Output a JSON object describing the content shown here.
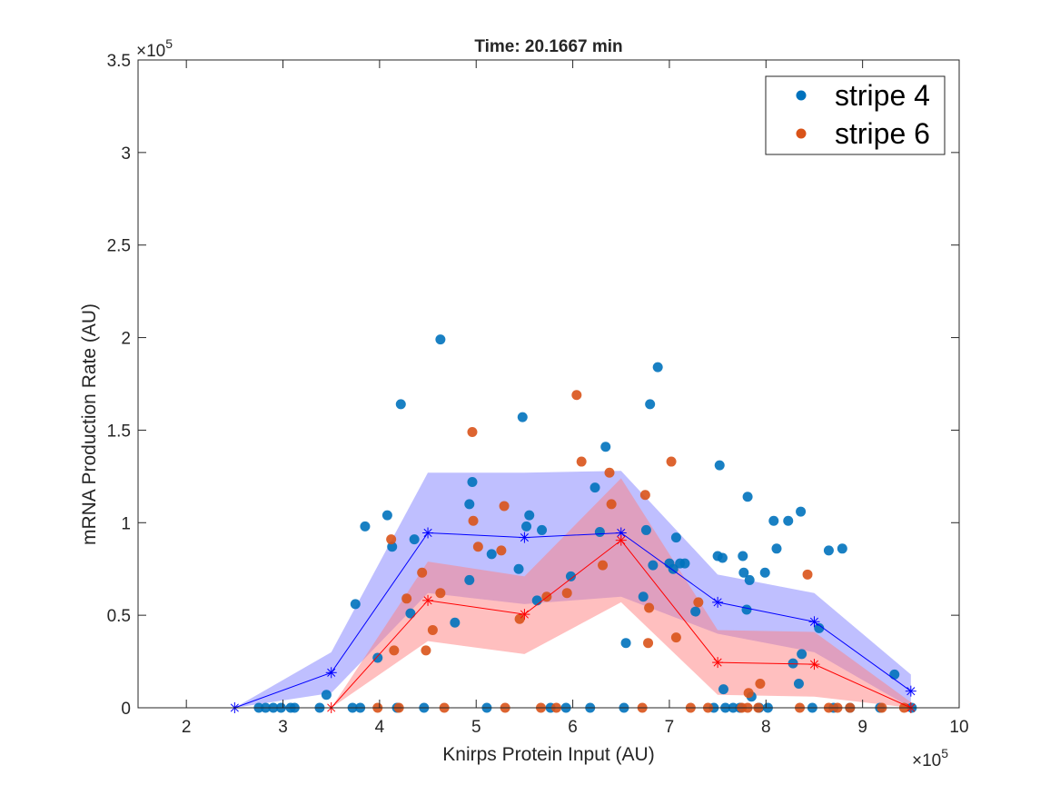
{
  "chart_data": {
    "type": "scatter",
    "title": "Time: 20.1667 min",
    "xlabel": "Knirps Protein Input (AU)",
    "ylabel": "mRNA Production Rate (AU)",
    "x_exponent_label": "×10",
    "x_exponent_power": "5",
    "y_exponent_label": "×10",
    "y_exponent_power": "5",
    "xlim": [
      150000,
      1000000
    ],
    "ylim": [
      0,
      350000
    ],
    "x_ticks": [
      200000,
      300000,
      400000,
      500000,
      600000,
      700000,
      800000,
      900000,
      1000000
    ],
    "x_tick_labels": [
      "2",
      "3",
      "4",
      "5",
      "6",
      "7",
      "8",
      "9",
      "10"
    ],
    "y_ticks": [
      0,
      50000,
      100000,
      150000,
      200000,
      250000,
      300000,
      350000
    ],
    "y_tick_labels": [
      "0",
      "0.5",
      "1",
      "1.5",
      "2",
      "2.5",
      "3",
      "3.5"
    ],
    "grid": false,
    "legend_position": "top-right",
    "series": [
      {
        "name": "stripe 4",
        "kind": "scatter",
        "color": "#0072BD",
        "points": [
          [
            275000,
            0
          ],
          [
            282000,
            0
          ],
          [
            290000,
            0
          ],
          [
            298000,
            0
          ],
          [
            308000,
            0
          ],
          [
            312000,
            0
          ],
          [
            338000,
            0
          ],
          [
            345000,
            7000
          ],
          [
            372000,
            0
          ],
          [
            375000,
            56000
          ],
          [
            380000,
            0
          ],
          [
            385000,
            98000
          ],
          [
            398000,
            27000
          ],
          [
            408000,
            104000
          ],
          [
            413000,
            87000
          ],
          [
            418000,
            0
          ],
          [
            422000,
            164000
          ],
          [
            432000,
            51000
          ],
          [
            436000,
            91000
          ],
          [
            446000,
            0
          ],
          [
            463000,
            199000
          ],
          [
            478000,
            46000
          ],
          [
            493000,
            69000
          ],
          [
            493000,
            110000
          ],
          [
            496000,
            122000
          ],
          [
            511000,
            0
          ],
          [
            516000,
            83000
          ],
          [
            544000,
            75000
          ],
          [
            548000,
            157000
          ],
          [
            552000,
            98000
          ],
          [
            555000,
            104000
          ],
          [
            563000,
            58000
          ],
          [
            568000,
            96000
          ],
          [
            577000,
            0
          ],
          [
            593000,
            0
          ],
          [
            598000,
            71000
          ],
          [
            618000,
            0
          ],
          [
            623000,
            119000
          ],
          [
            628000,
            95000
          ],
          [
            634000,
            141000
          ],
          [
            653000,
            0
          ],
          [
            655000,
            35000
          ],
          [
            673000,
            60000
          ],
          [
            676000,
            96000
          ],
          [
            680000,
            164000
          ],
          [
            683000,
            77000
          ],
          [
            688000,
            184000
          ],
          [
            700000,
            78000
          ],
          [
            704000,
            75000
          ],
          [
            707000,
            92000
          ],
          [
            711000,
            78000
          ],
          [
            716000,
            78000
          ],
          [
            727000,
            52000
          ],
          [
            746000,
            0
          ],
          [
            750000,
            82000
          ],
          [
            752000,
            131000
          ],
          [
            755000,
            81000
          ],
          [
            756000,
            10000
          ],
          [
            758000,
            0
          ],
          [
            766000,
            0
          ],
          [
            773000,
            0
          ],
          [
            776000,
            82000
          ],
          [
            777000,
            73000
          ],
          [
            780000,
            53000
          ],
          [
            781000,
            114000
          ],
          [
            783000,
            69000
          ],
          [
            785000,
            6000
          ],
          [
            793000,
            0
          ],
          [
            799000,
            73000
          ],
          [
            802000,
            0
          ],
          [
            808000,
            101000
          ],
          [
            811000,
            86000
          ],
          [
            823000,
            101000
          ],
          [
            828000,
            24000
          ],
          [
            834000,
            13000
          ],
          [
            836000,
            106000
          ],
          [
            837000,
            29000
          ],
          [
            848000,
            0
          ],
          [
            855000,
            43000
          ],
          [
            865000,
            85000
          ],
          [
            870000,
            0
          ],
          [
            879000,
            86000
          ],
          [
            887000,
            0
          ],
          [
            918000,
            0
          ],
          [
            933000,
            18000
          ],
          [
            951000,
            0
          ]
        ]
      },
      {
        "name": "stripe 6",
        "kind": "scatter",
        "color": "#D95319",
        "points": [
          [
            398000,
            0
          ],
          [
            412000,
            91000
          ],
          [
            415000,
            31000
          ],
          [
            420000,
            0
          ],
          [
            428000,
            59000
          ],
          [
            444000,
            73000
          ],
          [
            448000,
            31000
          ],
          [
            455000,
            42000
          ],
          [
            463000,
            62000
          ],
          [
            467000,
            0
          ],
          [
            496000,
            149000
          ],
          [
            497000,
            101000
          ],
          [
            502000,
            87000
          ],
          [
            526000,
            85000
          ],
          [
            529000,
            109000
          ],
          [
            530000,
            0
          ],
          [
            545000,
            48000
          ],
          [
            567000,
            0
          ],
          [
            573000,
            60000
          ],
          [
            583000,
            0
          ],
          [
            594000,
            62000
          ],
          [
            604000,
            169000
          ],
          [
            609000,
            133000
          ],
          [
            631000,
            77000
          ],
          [
            638000,
            127000
          ],
          [
            640000,
            110000
          ],
          [
            672000,
            0
          ],
          [
            675000,
            115000
          ],
          [
            678000,
            35000
          ],
          [
            679000,
            54000
          ],
          [
            702000,
            133000
          ],
          [
            707000,
            38000
          ],
          [
            722000,
            0
          ],
          [
            730000,
            57000
          ],
          [
            740000,
            0
          ],
          [
            775000,
            0
          ],
          [
            781000,
            0
          ],
          [
            782000,
            8000
          ],
          [
            792000,
            0
          ],
          [
            794000,
            13000
          ],
          [
            835000,
            0
          ],
          [
            843000,
            72000
          ],
          [
            865000,
            0
          ],
          [
            874000,
            0
          ],
          [
            887000,
            0
          ],
          [
            920000,
            0
          ],
          [
            943000,
            0
          ]
        ]
      },
      {
        "kind": "mean-line",
        "color": "#0000FF",
        "band_color": "#8080FF",
        "x": [
          250000,
          350000,
          450000,
          550000,
          650000,
          750000,
          850000,
          950000
        ],
        "mean": [
          0,
          19000,
          94500,
          92000,
          94500,
          57000,
          46500,
          9000
        ],
        "upper": [
          0,
          30000,
          127000,
          127000,
          128000,
          72000,
          62000,
          18000
        ],
        "lower": [
          0,
          8000,
          62000,
          56000,
          60000,
          40000,
          30000,
          0
        ]
      },
      {
        "kind": "mean-line",
        "color": "#FF0000",
        "band_color": "#FF8080",
        "x": [
          350000,
          450000,
          550000,
          650000,
          750000,
          850000,
          950000
        ],
        "mean": [
          0,
          58000,
          50500,
          90500,
          24500,
          23500,
          0
        ],
        "upper": [
          0,
          79000,
          71000,
          124000,
          42000,
          41000,
          3000
        ],
        "lower": [
          0,
          36000,
          29000,
          57000,
          7000,
          6000,
          0
        ]
      }
    ]
  }
}
